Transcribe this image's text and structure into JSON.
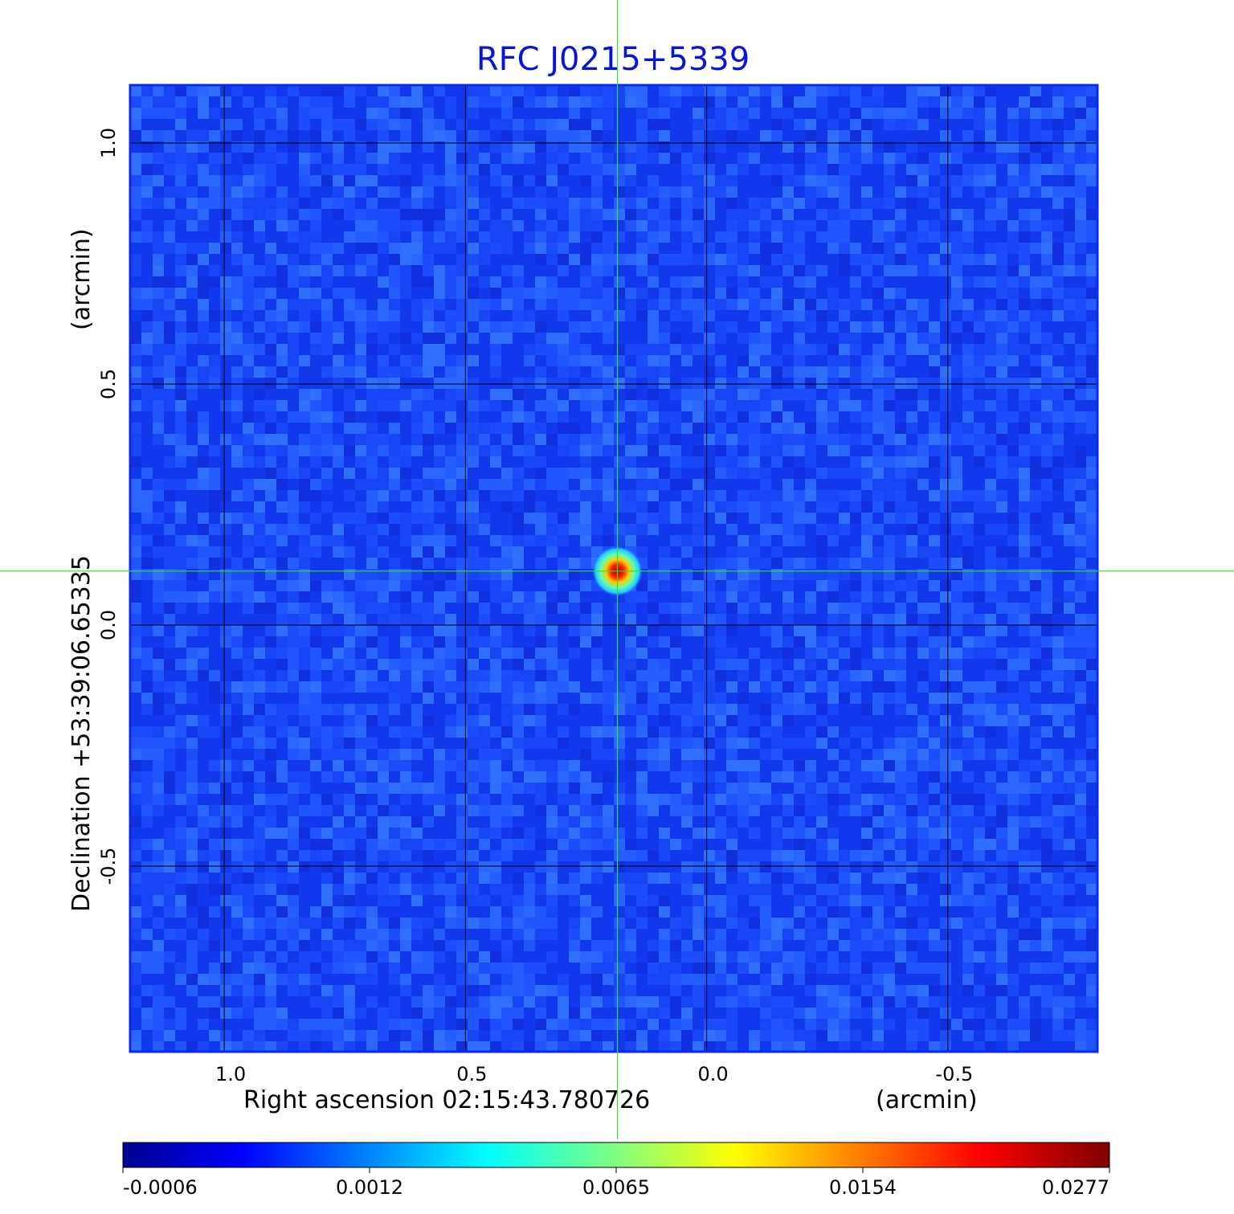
{
  "chart_data": {
    "type": "heatmap",
    "title": "RFC J0215+5339",
    "xlabel": "Right ascension  02:15:43.780726",
    "xunit": "(arcmin)",
    "ylabel": "Declination  +53:39:06.65335",
    "yunit": "(arcmin)",
    "x_ticks": [
      {
        "value": 1.0,
        "label": "1.0"
      },
      {
        "value": 0.5,
        "label": "0.5"
      },
      {
        "value": 0.0,
        "label": "0.0"
      },
      {
        "value": -0.5,
        "label": "-0.5"
      }
    ],
    "y_ticks": [
      {
        "value": 1.0,
        "label": "1.0"
      },
      {
        "value": 0.5,
        "label": "0.5"
      },
      {
        "value": 0.0,
        "label": "0.0"
      },
      {
        "value": -0.5,
        "label": "-0.5"
      }
    ],
    "xlim": [
      1.195,
      -0.81
    ],
    "ylim": [
      -0.885,
      1.12
    ],
    "grid": true,
    "crosshair": {
      "x": 0.185,
      "y": 0.112
    },
    "source": {
      "x": 0.185,
      "y": 0.112,
      "peak": 0.0277
    },
    "colormap": "jet",
    "colorbar": {
      "labels": [
        "-0.0006",
        "0.0012",
        "0.0065",
        "0.0154",
        "0.0277"
      ]
    },
    "colors": {
      "grid": "#000000",
      "crosshair": "#33dd33",
      "frame": "#0a2aee",
      "title": "#0a14d8"
    }
  }
}
